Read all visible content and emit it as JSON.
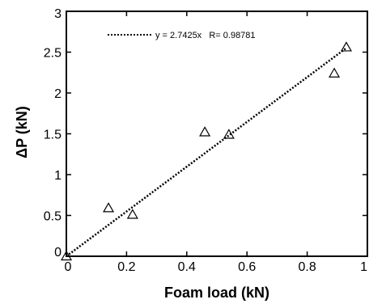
{
  "chart_data": {
    "type": "scatter",
    "xlabel": "Foam load (kN)",
    "ylabel": "ΔP (kN)",
    "xlim": [
      0,
      1
    ],
    "ylim": [
      0,
      3
    ],
    "x_ticks": [
      0,
      0.2,
      0.4,
      0.6,
      0.8,
      1
    ],
    "x_tick_labels": [
      "0",
      "0.2",
      "0.4",
      "0.6",
      "0.8",
      "1"
    ],
    "y_ticks": [
      0,
      0.5,
      1,
      1.5,
      2,
      2.5,
      3
    ],
    "y_tick_labels": [
      "0",
      "0.5",
      "1",
      "1.5",
      "2",
      "2.5",
      "3"
    ],
    "grid": false,
    "legend_position": "top-left",
    "points": {
      "marker": "open-triangle",
      "x": [
        0.0,
        0.14,
        0.22,
        0.46,
        0.54,
        0.89,
        0.93
      ],
      "y": [
        0.0,
        0.59,
        0.51,
        1.52,
        1.49,
        2.24,
        2.56
      ]
    },
    "fit": {
      "slope": 2.7425,
      "x_range": [
        0,
        0.93
      ],
      "line_style": "dotted",
      "legend_label": "y = 2.7425x   R= 0.98781"
    }
  }
}
